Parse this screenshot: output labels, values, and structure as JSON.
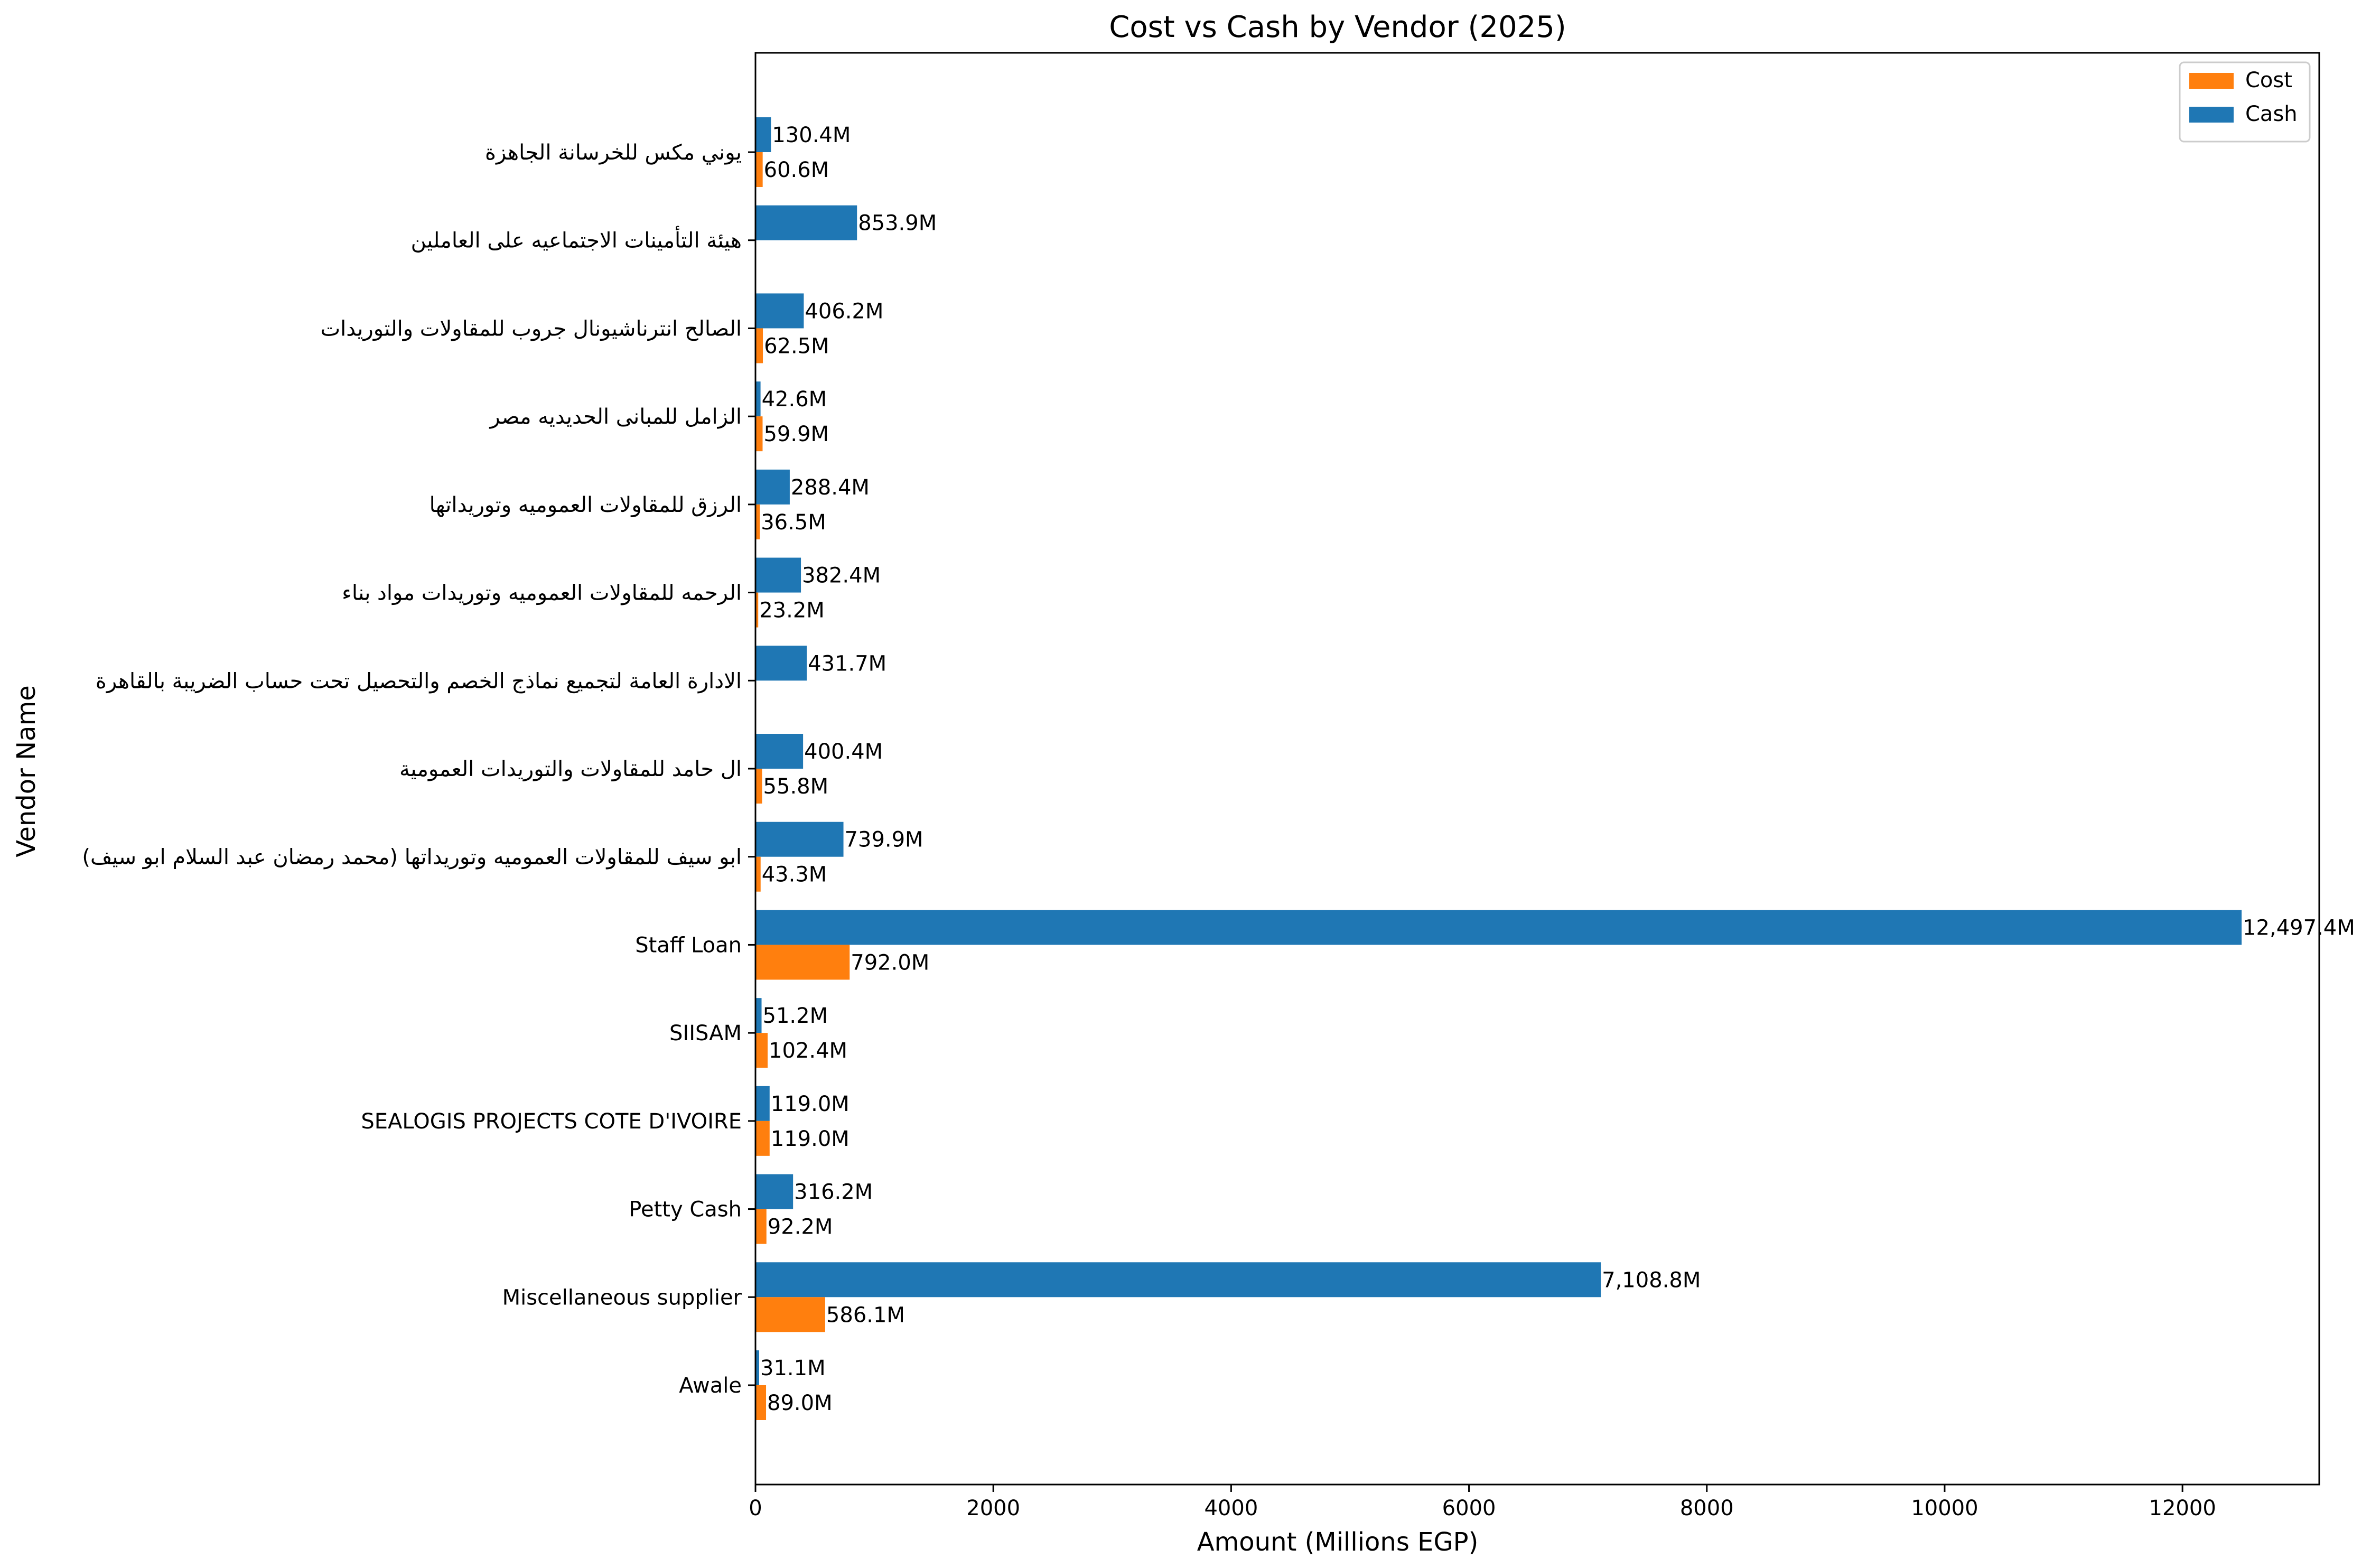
{
  "chart_data": {
    "type": "bar",
    "orientation": "horizontal",
    "title": "Cost vs Cash by Vendor (2025)",
    "xlabel": "Amount (Millions EGP)",
    "ylabel": "Vendor Name",
    "xlim": [
      0,
      13150
    ],
    "x_ticks": [
      "0",
      "2000",
      "4000",
      "6000",
      "8000",
      "10000",
      "12000"
    ],
    "grid": false,
    "legend_position": "top-right",
    "categories": [
      "يوني مكس للخرسانة الجاهزة",
      "هيئة التأمينات الاجتماعيه على العاملين",
      "الصالح انترناشيونال جروب للمقاولات والتوريدات",
      "الزامل للمبانى الحديديه مصر",
      "الرزق للمقاولات العموميه وتوريداتها",
      "الرحمه للمقاولات العموميه وتوريدات مواد بناء",
      "الادارة العامة لتجميع نماذج الخصم والتحصيل تحت حساب الضريبة بالقاهرة",
      "ال حامد للمقاولات والتوريدات العمومية",
      "ابو سيف للمقاولات العموميه وتوريداتها (محمد رمضان عبد السلام ابو سيف)",
      "Staff Loan",
      "SIISAM",
      "SEALOGIS PROJECTS COTE D'IVOIRE",
      "Petty Cash",
      "Miscellaneous supplier",
      "Awale"
    ],
    "series": [
      {
        "name": "Cash",
        "color": "#1f77b4",
        "values": [
          130.4,
          853.9,
          406.2,
          42.6,
          288.4,
          382.4,
          431.7,
          400.4,
          739.9,
          12497.4,
          51.2,
          119.0,
          316.2,
          7108.8,
          31.1
        ],
        "labels": [
          "130.4M",
          "853.9M",
          "406.2M",
          "42.6M",
          "288.4M",
          "382.4M",
          "431.7M",
          "400.4M",
          "739.9M",
          "12,497.4M",
          "51.2M",
          "119.0M",
          "316.2M",
          "7,108.8M",
          "31.1M"
        ]
      },
      {
        "name": "Cost",
        "color": "#ff7f0e",
        "values": [
          60.6,
          0,
          62.5,
          59.9,
          36.5,
          23.2,
          0,
          55.8,
          43.3,
          792.0,
          102.4,
          119.0,
          92.2,
          586.1,
          89.0
        ],
        "labels": [
          "60.6M",
          "",
          "62.5M",
          "59.9M",
          "36.5M",
          "23.2M",
          "",
          "55.8M",
          "43.3M",
          "792.0M",
          "102.4M",
          "119.0M",
          "92.2M",
          "586.1M",
          "89.0M"
        ]
      }
    ],
    "legend": [
      {
        "name": "Cost",
        "color": "#ff7f0e"
      },
      {
        "name": "Cash",
        "color": "#1f77b4"
      }
    ]
  }
}
